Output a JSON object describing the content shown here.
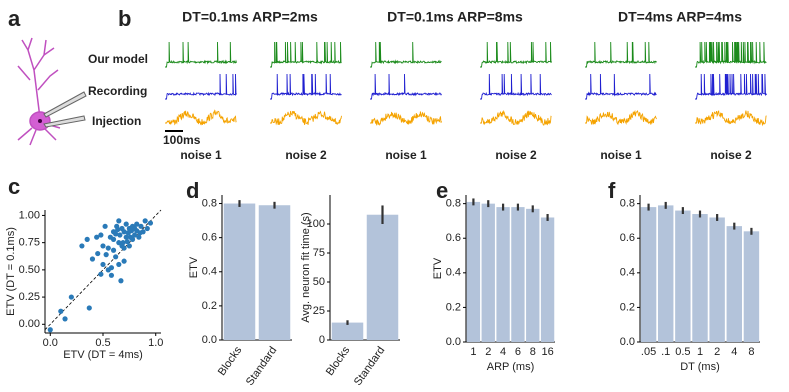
{
  "panel_labels": [
    "a",
    "b",
    "c",
    "d",
    "e",
    "f"
  ],
  "traces": {
    "conditions": [
      "DT=0.1ms ARP=2ms",
      "DT=0.1ms ARP=8ms",
      "DT=4ms ARP=4ms"
    ],
    "row_labels": [
      "Our model",
      "Recording",
      "Injection"
    ],
    "row_colors": [
      "#1a8a1a",
      "#1f1fd0",
      "#f5a300"
    ],
    "noise_labels": [
      "noise 1",
      "noise 2",
      "noise 1",
      "noise 2",
      "noise 1",
      "noise 2"
    ],
    "scale_bar": "100ms"
  },
  "chart_data": [
    {
      "type": "scatter",
      "xlabel": "ETV (DT = 4ms)",
      "ylabel": "ETV (DT = 0.1ms)",
      "color": "#2a7ab8",
      "x": [
        0.0,
        0.14,
        0.2,
        0.1,
        0.37,
        0.4,
        0.45,
        0.48,
        0.5,
        0.52,
        0.55,
        0.55,
        0.58,
        0.6,
        0.6,
        0.62,
        0.63,
        0.65,
        0.65,
        0.66,
        0.68,
        0.68,
        0.7,
        0.7,
        0.7,
        0.72,
        0.72,
        0.73,
        0.74,
        0.75,
        0.75,
        0.76,
        0.77,
        0.78,
        0.78,
        0.8,
        0.8,
        0.82,
        0.82,
        0.84,
        0.85,
        0.86,
        0.88,
        0.9,
        0.92,
        0.95,
        0.44,
        0.5,
        0.57,
        0.6,
        0.62,
        0.67,
        0.53,
        0.58,
        0.64,
        0.69,
        0.48,
        0.35,
        0.3,
        0.65
      ],
      "y": [
        -0.05,
        0.05,
        0.25,
        0.12,
        0.15,
        0.6,
        0.65,
        0.82,
        0.55,
        0.9,
        0.7,
        0.5,
        0.45,
        0.85,
        0.78,
        0.62,
        0.9,
        0.75,
        0.55,
        0.82,
        0.88,
        0.72,
        0.85,
        0.7,
        0.58,
        0.8,
        0.92,
        0.76,
        0.84,
        0.88,
        0.72,
        0.8,
        0.86,
        0.78,
        0.9,
        0.82,
        0.88,
        0.86,
        0.92,
        0.8,
        0.84,
        0.9,
        0.85,
        0.95,
        0.88,
        0.93,
        0.8,
        0.72,
        0.8,
        0.68,
        0.83,
        0.4,
        0.64,
        0.52,
        0.87,
        0.75,
        0.46,
        0.78,
        0.72,
        0.95
      ],
      "xlim": [
        -0.05,
        1.05
      ],
      "ylim": [
        -0.08,
        1.05
      ],
      "xticks": [
        {
          "value": 0,
          "label": "0.0"
        },
        {
          "value": 0.5,
          "label": "0.5"
        },
        {
          "value": 1,
          "label": "1.0"
        }
      ],
      "yticks": [
        {
          "value": 0,
          "label": "0.00"
        },
        {
          "value": 0.25,
          "label": "0.25"
        },
        {
          "value": 0.5,
          "label": "0.50"
        },
        {
          "value": 0.75,
          "label": "0.75"
        },
        {
          "value": 1,
          "label": "1.00"
        }
      ]
    },
    {
      "type": "bar",
      "ylabel": "ETV",
      "categories": [
        "Blocks",
        "Standard"
      ],
      "values": [
        0.8,
        0.79
      ],
      "errors": [
        0.02,
        0.02
      ],
      "color": "#b3c3da",
      "ylim": [
        0,
        0.85
      ],
      "yticks": [
        {
          "value": 0,
          "label": "0.0"
        },
        {
          "value": 0.2,
          "label": "0.2"
        },
        {
          "value": 0.4,
          "label": "0.4"
        },
        {
          "value": 0.6,
          "label": "0.6"
        },
        {
          "value": 0.8,
          "label": "0.8"
        }
      ]
    },
    {
      "type": "bar",
      "ylabel": "Avg. neuron fit time (s)",
      "categories": [
        "Blocks",
        "Standard"
      ],
      "values": [
        15,
        108
      ],
      "errors": [
        2,
        8
      ],
      "color": "#b3c3da",
      "ylim": [
        0,
        125
      ],
      "yticks": [
        0,
        25,
        50,
        75,
        100
      ]
    },
    {
      "type": "bar",
      "ylabel": "ETV",
      "xlabel": "ARP (ms)",
      "categories": [
        "1",
        "2",
        "4",
        "6",
        "8",
        "16"
      ],
      "values": [
        0.81,
        0.8,
        0.78,
        0.78,
        0.77,
        0.72
      ],
      "errors": [
        0.02,
        0.02,
        0.02,
        0.02,
        0.02,
        0.02
      ],
      "color": "#b3c3da",
      "ylim": [
        0,
        0.85
      ],
      "yticks": [
        {
          "value": 0,
          "label": "0.0"
        },
        {
          "value": 0.2,
          "label": "0.2"
        },
        {
          "value": 0.4,
          "label": "0.4"
        },
        {
          "value": 0.6,
          "label": "0.6"
        },
        {
          "value": 0.8,
          "label": "0.8"
        }
      ]
    },
    {
      "type": "bar",
      "xlabel": "DT (ms)",
      "categories": [
        ".05",
        ".1",
        "0.5",
        "1",
        "2",
        "4",
        "8"
      ],
      "values": [
        0.78,
        0.79,
        0.76,
        0.74,
        0.72,
        0.67,
        0.64
      ],
      "errors": [
        0.02,
        0.02,
        0.02,
        0.02,
        0.02,
        0.02,
        0.02
      ],
      "color": "#b3c3da",
      "ylim": [
        0,
        0.85
      ],
      "yticks": [
        {
          "value": 0,
          "label": "0.0"
        },
        {
          "value": 0.2,
          "label": "0.2"
        },
        {
          "value": 0.4,
          "label": "0.4"
        },
        {
          "value": 0.6,
          "label": "0.6"
        },
        {
          "value": 0.8,
          "label": "0.8"
        }
      ]
    }
  ]
}
